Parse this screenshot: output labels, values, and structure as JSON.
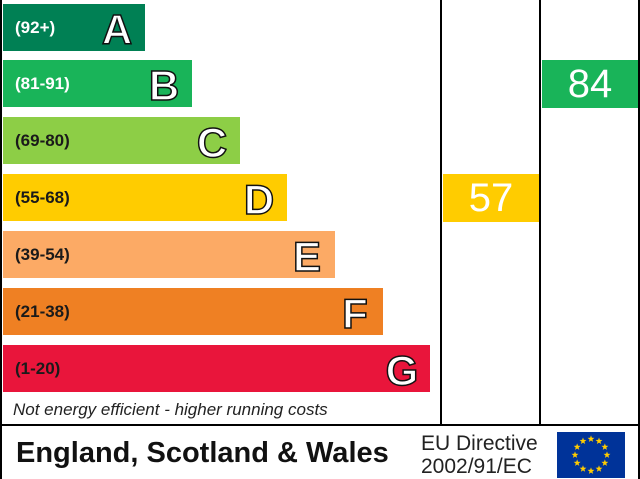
{
  "bands": [
    {
      "letter": "A",
      "range": "(92+)",
      "color": "#008054",
      "text_color": "#ffffff"
    },
    {
      "letter": "B",
      "range": "(81-91)",
      "color": "#19b459",
      "text_color": "#ffffff"
    },
    {
      "letter": "C",
      "range": "(69-80)",
      "color": "#8dce46",
      "text_color": "#1a1a1a"
    },
    {
      "letter": "D",
      "range": "(55-68)",
      "color": "#ffcc00",
      "text_color": "#1a1a1a"
    },
    {
      "letter": "E",
      "range": "(39-54)",
      "color": "#fcaa65",
      "text_color": "#1a1a1a"
    },
    {
      "letter": "F",
      "range": "(21-38)",
      "color": "#ef8023",
      "text_color": "#1a1a1a"
    },
    {
      "letter": "G",
      "range": "(1-20)",
      "color": "#e9153b",
      "text_color": "#1a1a1a"
    }
  ],
  "current": {
    "value": "57",
    "band": "D",
    "color": "#ffcc00"
  },
  "potential": {
    "value": "84",
    "band": "B",
    "color": "#19b459"
  },
  "footer_note": "Not energy efficient - higher running costs",
  "region": "England, Scotland & Wales",
  "directive": {
    "line1": "EU Directive",
    "line2": "2002/91/EC"
  },
  "eu_flag": {
    "icon": "eu-flag-icon",
    "blue": "#003399",
    "star": "#ffcc00"
  }
}
